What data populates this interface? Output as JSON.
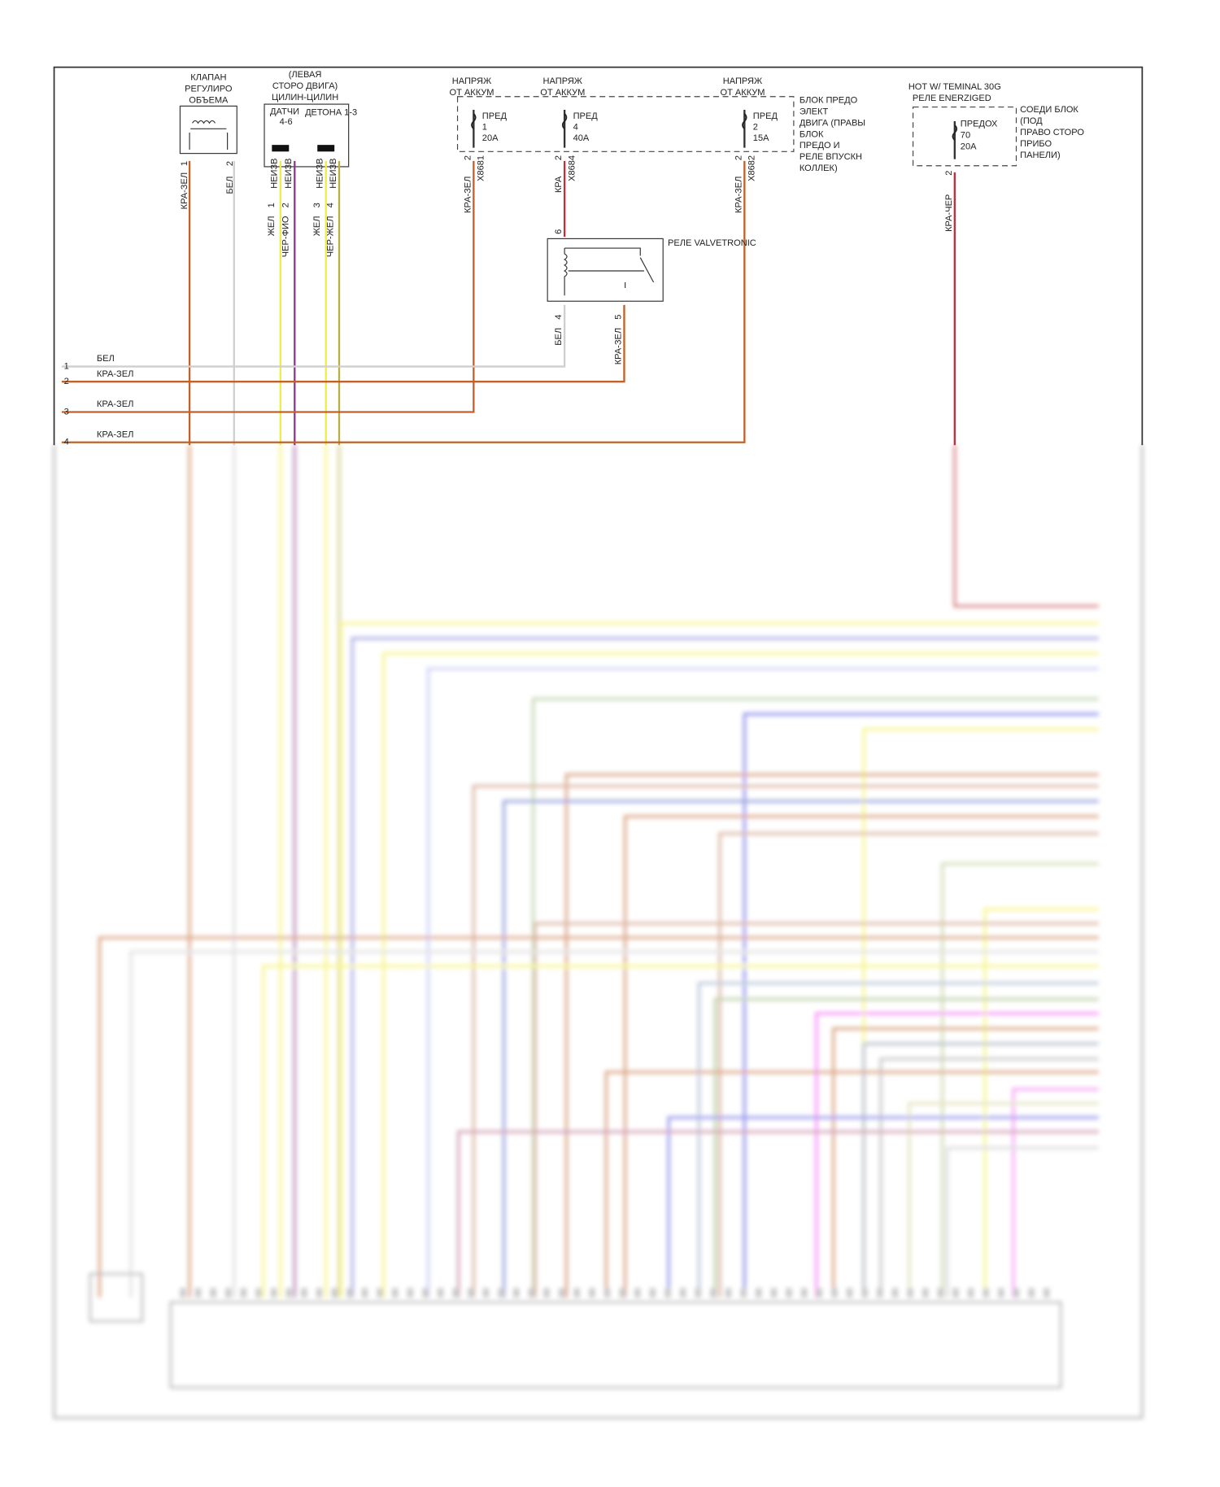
{
  "valve": {
    "title": [
      "КЛАПАН",
      "РЕГУЛИРО",
      "ОБЪЕМА"
    ],
    "pins": [
      "1",
      "2"
    ],
    "wires": [
      "КРА-ЗЕЛ",
      "БЕЛ"
    ]
  },
  "knock": {
    "title": [
      "(ЛЕВАЯ",
      "СТОРО ДВИГА)",
      "ЦИЛИН-ЦИЛИН"
    ],
    "sensor_a": [
      "ДАТЧИ",
      "4-6"
    ],
    "sensor_b": "ДЕТОНА 1-3",
    "types": [
      "НЕИЗВ",
      "НЕИЗВ",
      "НЕИЗВ",
      "НЕИЗВ"
    ],
    "pins": [
      "1",
      "2",
      "3",
      "4"
    ],
    "wires": [
      "ЖЕЛ",
      "ЧЕР-ФИО",
      "ЖЕЛ",
      "ЧЕР-ЖЕЛ"
    ]
  },
  "fuse_block": {
    "label": [
      "БЛОК ПРЕДО",
      "ЭЛЕКТ",
      "ДВИГА (ПРАВЫ",
      "БЛОК",
      "ПРЕДО И",
      "РЕЛЕ ВПУСКН",
      "КОЛЛЕК)"
    ],
    "feeds": [
      {
        "source": [
          "НАПРЯЖ",
          "ОТ АККУМ"
        ],
        "fuse": [
          "ПРЕД",
          "1",
          "20А"
        ],
        "pin": "2",
        "connector": "X8681",
        "wire": "КРА-ЗЕЛ"
      },
      {
        "source": [
          "НАПРЯЖ",
          "ОТ АККУМ"
        ],
        "fuse": [
          "ПРЕД",
          "4",
          "40А"
        ],
        "pin": "2",
        "connector": "X8684",
        "wire": "КРА"
      },
      {
        "source": [
          "НАПРЯЖ",
          "ОТ АККУМ"
        ],
        "fuse": [
          "ПРЕД",
          "2",
          "15А"
        ],
        "pin": "2",
        "connector": "X8682",
        "wire": "КРА-ЗЕЛ"
      }
    ]
  },
  "relay": {
    "title": "РЕЛЕ VALVETRONIC",
    "pins": [
      "6",
      "4",
      "5"
    ],
    "wires": [
      "БЕЛ",
      "КРА-ЗЕЛ"
    ]
  },
  "junction": {
    "source": [
      "HOT W/ TEMINAL 30G",
      "РЕЛЕ ENERZIGED"
    ],
    "label": [
      "СОЕДИ БЛОК",
      "(ПОД",
      "ПРАВО СТОРО",
      "ПРИБО",
      "ПАНЕЛИ)"
    ],
    "fuse": [
      "ПРЕДОХ",
      "70",
      "20А"
    ],
    "pin": "2",
    "wire": "КРА-ЧЕР"
  },
  "harness": [
    {
      "number": "1",
      "wire": "БЕЛ"
    },
    {
      "number": "2",
      "wire": "КРА-ЗЕЛ"
    },
    {
      "number": "3",
      "wire": "КРА-ЗЕЛ"
    },
    {
      "number": "4",
      "wire": "КРА-ЗЕЛ"
    }
  ]
}
